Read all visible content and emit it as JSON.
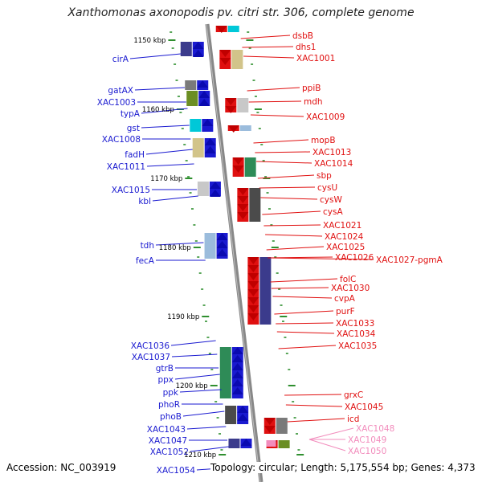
{
  "title": "Xanthomonas axonopodis pv. citri str. 306, complete genome",
  "footer": {
    "accession": "Accession: NC_003919",
    "info": "Topology: circular; Length: 5,175,554 bp; Genes: 4,373"
  },
  "colors": {
    "left_genes": "#1a1ad0",
    "right_genes": "#e01010",
    "faded_genes": "#f28cbc",
    "backbone": "#888888",
    "ticks": "#2f8f2f"
  },
  "kbp_labels": [
    "1150 kbp",
    "1160 kbp",
    "1170 kbp",
    "1180 kbp",
    "1190 kbp",
    "1200 kbp",
    "1210 kbp"
  ],
  "left_genes": [
    "cirA",
    "gatAX",
    "XAC1003",
    "typA",
    "gst",
    "XAC1008",
    "fadH",
    "XAC1011",
    "XAC1015",
    "kbl",
    "tdh",
    "fecA",
    "XAC1036",
    "XAC1037",
    "gtrB",
    "ppx",
    "ppk",
    "phoR",
    "phoB",
    "XAC1043",
    "XAC1047",
    "XAC1052",
    "XAC1054"
  ],
  "right_genes": [
    "dsbB",
    "dhs1",
    "XAC1001",
    "ppiB",
    "mdh",
    "XAC1009",
    "mopB",
    "XAC1013",
    "XAC1014",
    "sbp",
    "cysU",
    "cysW",
    "cysA",
    "XAC1021",
    "XAC1024",
    "XAC1025",
    "XAC1026",
    "XAC1027-pgmA",
    "folC",
    "XAC1030",
    "cvpA",
    "purF",
    "XAC1033",
    "XAC1034",
    "XAC1035",
    "grxC",
    "XAC1045",
    "icd"
  ],
  "faded_genes": [
    "XAC1048",
    "XAC1049",
    "XAC1050"
  ]
}
